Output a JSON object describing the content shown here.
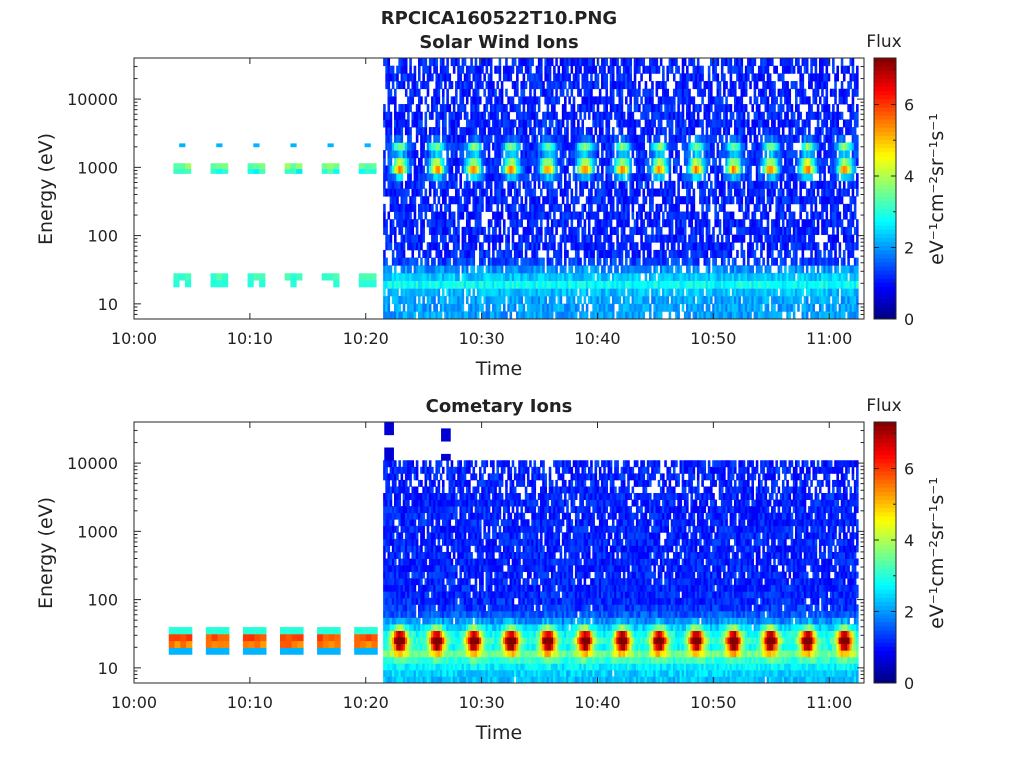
{
  "figure": {
    "title": "RPCICA160522T10.PNG"
  },
  "chart_data": [
    {
      "type": "heatmap",
      "title": "Solar Wind Ions",
      "xlabel": "Time",
      "ylabel": "Energy (eV)",
      "x_tick_labels": [
        "10:00",
        "10:10",
        "10:20",
        "10:30",
        "10:40",
        "10:50",
        "11:00"
      ],
      "y_tick_labels": [
        "10",
        "100",
        "1000",
        "10000"
      ],
      "xlim": [
        "10:00",
        "11:03"
      ],
      "ylim": [
        6,
        40000
      ],
      "y_scale": "log",
      "colorbar": {
        "title": "Flux",
        "label": "eV⁻¹cm⁻²sr⁻¹s⁻¹",
        "tick_labels": [
          "0",
          "2",
          "4",
          "6"
        ],
        "range": [
          0,
          7.3
        ],
        "colormap": "jet"
      },
      "features": {
        "data_start_full_coverage": "10:21.5",
        "sparse_segment": "10:03 – 10:21",
        "peak_energy_main_ev": 1000,
        "peak_energy_secondary_ev": 2000,
        "low_energy_band_ev": 25,
        "periodicity_min": 3.2,
        "peak_flux": 4.5,
        "background_flux": 0.8
      }
    },
    {
      "type": "heatmap",
      "title": "Cometary Ions",
      "xlabel": "Time",
      "ylabel": "Energy (eV)",
      "x_tick_labels": [
        "10:00",
        "10:10",
        "10:20",
        "10:30",
        "10:40",
        "10:50",
        "11:00"
      ],
      "y_tick_labels": [
        "10",
        "100",
        "1000",
        "10000"
      ],
      "xlim": [
        "10:00",
        "11:03"
      ],
      "ylim": [
        6,
        40000
      ],
      "y_scale": "log",
      "colorbar": {
        "title": "Flux",
        "label": "eV⁻¹cm⁻²sr⁻¹s⁻¹",
        "tick_labels": [
          "0",
          "2",
          "4",
          "6"
        ],
        "range": [
          0,
          7.3
        ],
        "colormap": "jet"
      },
      "features": {
        "data_start_full_coverage": "10:21.5",
        "sparse_segment": "10:03 – 10:21",
        "peak_energy_ev": 25,
        "upper_energy_cutoff_ev": 11000,
        "periodicity_min": 3.2,
        "peak_flux": 5.8,
        "background_flux": 0.8
      }
    }
  ]
}
